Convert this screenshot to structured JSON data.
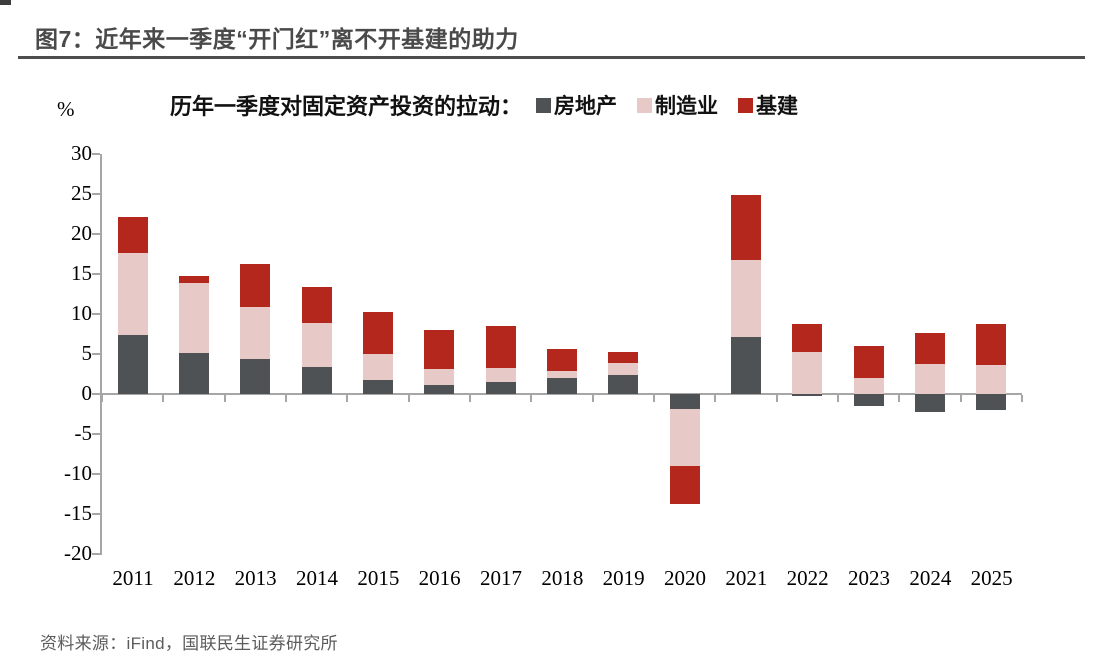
{
  "figure": {
    "title": "图7：近年来一季度“开门红”离不开基建的助力",
    "source": "资料来源：iFind，国联民生证券研究所"
  },
  "chart_data": {
    "type": "bar",
    "stacked": true,
    "title": "历年一季度对固定资产投资的拉动：",
    "unit_label": "%",
    "categories": [
      "2011",
      "2012",
      "2013",
      "2014",
      "2015",
      "2016",
      "2017",
      "2018",
      "2019",
      "2020",
      "2021",
      "2022",
      "2023",
      "2024",
      "2025"
    ],
    "series": [
      {
        "name": "房地产",
        "color": "#4f5254",
        "values": [
          7.4,
          5.1,
          4.4,
          3.4,
          1.7,
          1.1,
          1.5,
          2.0,
          2.4,
          -1.9,
          7.1,
          -0.3,
          -1.5,
          -2.3,
          -2.0
        ]
      },
      {
        "name": "制造业",
        "color": "#e7cac7",
        "values": [
          10.2,
          8.8,
          6.5,
          5.5,
          3.3,
          2.0,
          1.8,
          0.9,
          1.5,
          -7.1,
          9.6,
          5.2,
          2.0,
          3.8,
          3.6
        ]
      },
      {
        "name": "基建",
        "color": "#b3271d",
        "values": [
          4.5,
          0.8,
          5.3,
          4.5,
          5.3,
          4.9,
          5.2,
          2.7,
          1.3,
          -4.7,
          8.2,
          3.5,
          4.0,
          3.8,
          5.2
        ]
      }
    ],
    "ylim": [
      -20,
      30
    ],
    "y_tick_step": 5,
    "y_ticks": [
      30,
      25,
      20,
      15,
      10,
      5,
      0,
      -5,
      -10,
      -15,
      -20
    ],
    "legend_position": "top",
    "grid": false,
    "colors": {
      "estate": "#4f5254",
      "manufacturing": "#e7cac7",
      "infrastructure": "#b3271d",
      "axis": "#a6a6a6"
    }
  }
}
